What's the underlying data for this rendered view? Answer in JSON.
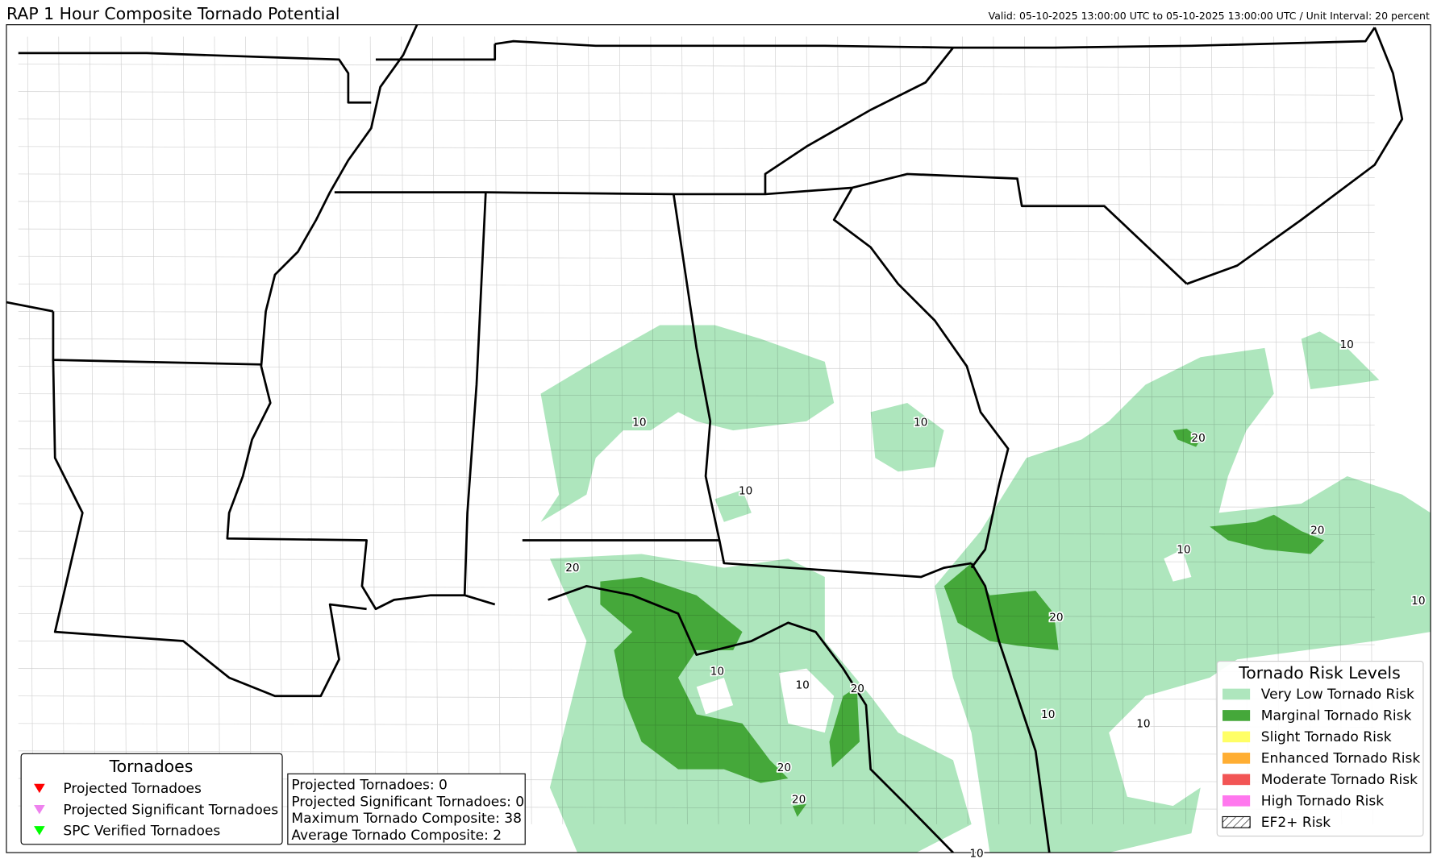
{
  "header": {
    "title": "RAP 1 Hour Composite Tornado Potential",
    "valid": "Valid: 05-10-2025 13:00:00 UTC to 05-10-2025 13:00:00 UTC / Unit Interval: 20 percent"
  },
  "contour_labels": [
    10,
    10,
    10,
    10,
    10,
    20,
    20,
    20,
    10,
    20,
    10,
    10,
    20,
    20,
    20,
    10,
    10,
    10
  ],
  "tornado_legend": {
    "title": "Tornadoes",
    "items": [
      {
        "label": "Projected Tornadoes",
        "color": "#ff0000"
      },
      {
        "label": "Projected Significant Tornadoes",
        "color": "#ee82ee"
      },
      {
        "label": "SPC Verified Tornadoes",
        "color": "#00ff00"
      }
    ]
  },
  "stats": [
    "Projected Tornadoes: 0",
    "Projected Significant Tornadoes: 0",
    "Maximum Tornado Composite: 38",
    "Average Tornado Composite: 2"
  ],
  "risk_legend": {
    "title": "Tornado Risk Levels",
    "items": [
      {
        "label": "Very Low Tornado Risk",
        "color": "#aee6bd"
      },
      {
        "label": "Marginal Tornado Risk",
        "color": "#45a83a"
      },
      {
        "label": "Slight Tornado Risk",
        "color": "#ffff66"
      },
      {
        "label": "Enhanced Tornado Risk",
        "color": "#ffae33"
      },
      {
        "label": "Moderate Tornado Risk",
        "color": "#f25555"
      },
      {
        "label": "High Tornado Risk",
        "color": "#ff77ee"
      },
      {
        "label": "EF2+ Risk",
        "color": "hatch"
      }
    ]
  }
}
